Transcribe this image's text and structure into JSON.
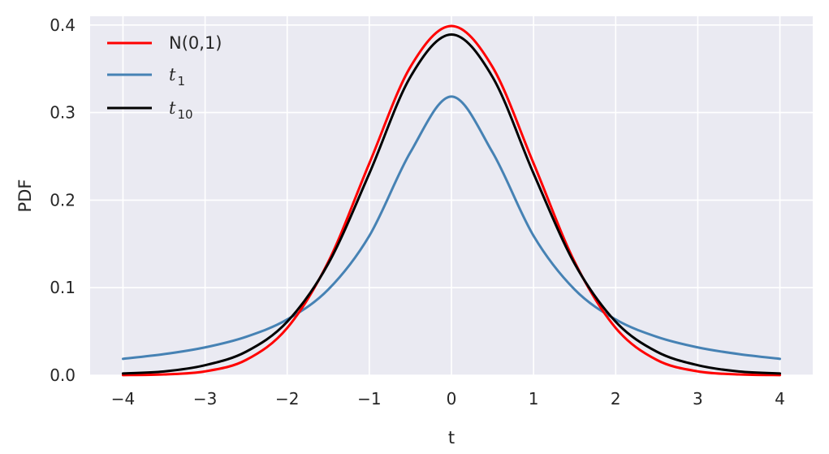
{
  "chart_data": {
    "type": "line",
    "title": "",
    "xlabel": "t",
    "ylabel": "PDF",
    "xlim": [
      -4.4,
      4.4
    ],
    "ylim": [
      0,
      0.41
    ],
    "xticks": [
      -4,
      -3,
      -2,
      -1,
      0,
      1,
      2,
      3,
      4
    ],
    "xtick_labels": [
      "−4",
      "−3",
      "−2",
      "−1",
      "0",
      "1",
      "2",
      "3",
      "4"
    ],
    "yticks": [
      0.0,
      0.1,
      0.2,
      0.3,
      0.4
    ],
    "ytick_labels": [
      "0.0",
      "0.1",
      "0.2",
      "0.3",
      "0.4"
    ],
    "grid": true,
    "legend_position": "top-left",
    "background": "#eaeaf2",
    "x_range": [
      -4,
      4
    ],
    "series": [
      {
        "name": "N(0,1)",
        "legend_main": "N(0,1)",
        "legend_sub": "",
        "legend_math": false,
        "color": "#ff0000",
        "x": [
          -4,
          -3.5,
          -3,
          -2.5,
          -2,
          -1.5,
          -1,
          -0.5,
          0,
          0.5,
          1,
          1.5,
          2,
          2.5,
          3,
          3.5,
          4
        ],
        "values": [
          0.0001,
          0.0009,
          0.0044,
          0.0175,
          0.054,
          0.1295,
          0.242,
          0.3521,
          0.3989,
          0.3521,
          0.242,
          0.1295,
          0.054,
          0.0175,
          0.0044,
          0.0009,
          0.0001
        ]
      },
      {
        "name": "t_1",
        "legend_main": "t",
        "legend_sub": "1",
        "legend_math": true,
        "color": "#4682b4",
        "x": [
          -4,
          -3.5,
          -3,
          -2.5,
          -2,
          -1.5,
          -1,
          -0.5,
          0,
          0.5,
          1,
          1.5,
          2,
          2.5,
          3,
          3.5,
          4
        ],
        "values": [
          0.0187,
          0.0241,
          0.0318,
          0.0439,
          0.0637,
          0.0979,
          0.1592,
          0.2546,
          0.3183,
          0.2546,
          0.1592,
          0.0979,
          0.0637,
          0.0439,
          0.0318,
          0.0241,
          0.0187
        ]
      },
      {
        "name": "t_10",
        "legend_main": "t",
        "legend_sub": "10",
        "legend_math": true,
        "color": "#000000",
        "x": [
          -4,
          -3.5,
          -3,
          -2.5,
          -2,
          -1.5,
          -1,
          -0.5,
          0,
          0.5,
          1,
          1.5,
          2,
          2.5,
          3,
          3.5,
          4
        ],
        "values": [
          0.002,
          0.0043,
          0.0114,
          0.0269,
          0.0611,
          0.1274,
          0.2304,
          0.3407,
          0.3891,
          0.3407,
          0.2304,
          0.1274,
          0.0611,
          0.0269,
          0.0114,
          0.0043,
          0.002
        ]
      }
    ]
  }
}
